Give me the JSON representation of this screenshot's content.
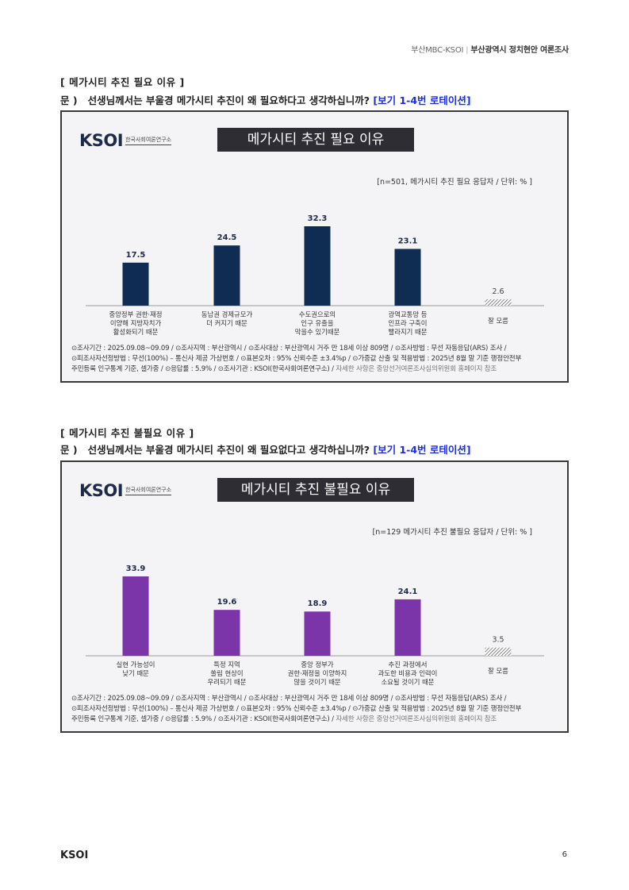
{
  "header": {
    "left": "부산MBC-KSOI",
    "sep": "|",
    "right": "부산광역시 정치현안 여론조사"
  },
  "sections": [
    {
      "title": "[ 메가시티 추진 필요 이유 ]",
      "question_prefix": "문 )",
      "question": "선생님께서는 부울경 메가시티 추진이 왜 필요하다고 생각하십니까?",
      "question_tag": "[보기 1-4번 로테이션]",
      "logo": "KSOI",
      "logo_org": "한국사회여론연구소",
      "note": "[n=501, 메가시티 추진 필요 응답자 / 단위: % ]",
      "footer": {
        "line1": "⊙조사기간 : 2025.09.08~09.09 / ⊙조사지역 : 부산광역시 / ⊙조사대상 : 부산광역시 거주 만 18세 이상 809명 / ⊙조사방법 : 무선 자동응답(ARS) 조사 /",
        "line2": "⊙피조사자선정방법 : 무선(100%) – 통신사 제공 가상번호 / ⊙표본오차 : 95% 신뢰수준 ±3.4%p / ⊙가중값 산출 및 적용방법 : 2025년 8월 말 기준 행정안전부",
        "line3a": "주민등록 인구통계 기준, 셀가중 / ⊙응답률 : 5.9% / ⊙조사기관 : KSOI(한국사회여론연구소) /",
        "line3b": " 자세한 사항은 중앙선거여론조사심의위원회 홈페이지 참조"
      },
      "chart_data": {
        "type": "bar",
        "title": "메가시티 추진 필요 이유",
        "categories": [
          [
            "중앙정부 권한·재정",
            "이양해 지방자치가",
            "활성화되기 때문"
          ],
          [
            "동남권 경제규모가",
            "더 커지기 때문"
          ],
          [
            "수도권으로의",
            "인구 유출을",
            "막을수 있기때문"
          ],
          [
            "광역교통망 등",
            "인프라 구축이",
            "빨라지기 때문"
          ],
          [
            "잘 모름"
          ]
        ],
        "values": [
          17.5,
          24.5,
          32.3,
          23.1,
          2.6
        ],
        "value_labels": [
          "17.5",
          "24.5",
          "32.3",
          "23.1",
          "2.6"
        ],
        "bar_color": "#0f2d52",
        "dk_pattern": true,
        "ylim": [
          0,
          32.3
        ]
      }
    },
    {
      "title": "[ 메가시티 추진 불필요 이유 ]",
      "question_prefix": "문 )",
      "question": "선생님께서는 부울경 메가시티 추진이 왜 필요없다고 생각하십니까?",
      "question_tag": "[보기 1-4번 로테이션]",
      "logo": "KSOI",
      "logo_org": "한국사회여론연구소",
      "note": "[n=129 메가시티 추진 불필요 응답자 / 단위: % ]",
      "footer": {
        "line1": "⊙조사기간 : 2025.09.08~09.09 / ⊙조사지역 : 부산광역시 / ⊙조사대상 : 부산광역시 거주 만 18세 이상 809명 / ⊙조사방법 : 무선 자동응답(ARS) 조사 /",
        "line2": "⊙피조사자선정방법 : 무선(100%) – 통신사 제공 가상번호 / ⊙표본오차 : 95% 신뢰수준 ±3.4%p / ⊙가중값 산출 및 적용방법 : 2025년 8월 말 기준 행정안전부",
        "line3a": "주민등록 인구통계 기준, 셀가중 / ⊙응답률 : 5.9% / ⊙조사기관 : KSOI(한국사회여론연구소) /",
        "line3b": " 자세한 사항은 중앙선거여론조사심의위원회 홈페이지 참조"
      },
      "chart_data": {
        "type": "bar",
        "title": "메가시티 추진 불필요 이유",
        "categories": [
          [
            "실현 가능성이",
            "낮기 때문"
          ],
          [
            "특정 지역",
            "쏠림 현상이",
            "우려되기 때문"
          ],
          [
            "중앙 정부가",
            "권한·재정을 이양하지",
            "않을 것이기 때문"
          ],
          [
            "추진 과정에서",
            "과도한 비용과 인력이",
            "소요될 것이기 때문"
          ],
          [
            "잘 모름"
          ]
        ],
        "values": [
          33.9,
          19.6,
          18.9,
          24.1,
          3.5
        ],
        "value_labels": [
          "33.9",
          "19.6",
          "18.9",
          "24.1",
          "3.5"
        ],
        "bar_color": "#7b35a8",
        "dk_pattern": true,
        "ylim": [
          0,
          33.9
        ]
      }
    }
  ],
  "page": {
    "logo": "KSOI",
    "number": "6"
  }
}
